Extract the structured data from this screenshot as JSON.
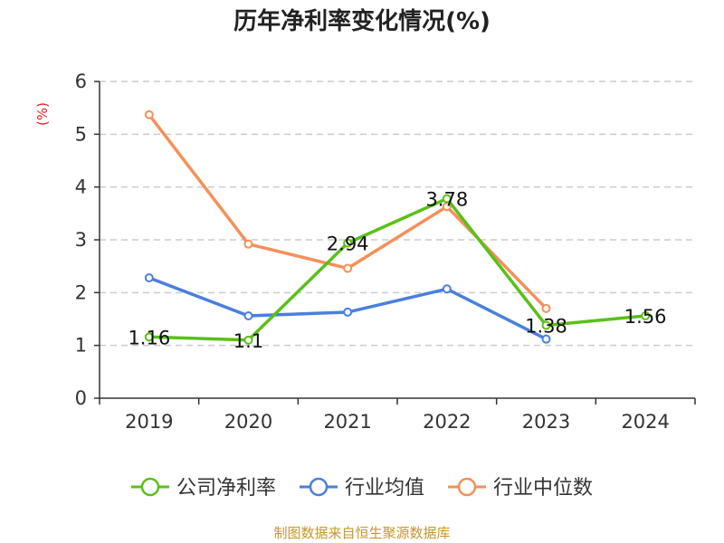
{
  "chart_data": {
    "type": "line",
    "title": "历年净利率变化情况(%)",
    "ylabel": "(%)",
    "categories": [
      "2019",
      "2020",
      "2021",
      "2022",
      "2023",
      "2024"
    ],
    "ylim": [
      0,
      6
    ],
    "yticks": [
      0,
      1,
      2,
      3,
      4,
      5,
      6
    ],
    "grid": true,
    "legend_position": "bottom",
    "series": [
      {
        "name": "公司净利率",
        "color": "#5ac018",
        "values": [
          1.16,
          1.1,
          2.94,
          3.78,
          1.38,
          1.56
        ],
        "labels": [
          "1.16",
          "1.1",
          "2.94",
          "3.78",
          "1.38",
          "1.56"
        ]
      },
      {
        "name": "行业均值",
        "color": "#4a7fde",
        "values": [
          2.28,
          1.56,
          1.63,
          2.07,
          1.12,
          null
        ]
      },
      {
        "name": "行业中位数",
        "color": "#f4905a",
        "values": [
          5.37,
          2.92,
          2.46,
          3.63,
          1.7,
          null
        ]
      }
    ],
    "source": "制图数据来自恒生聚源数据库"
  },
  "colors": {
    "title": "#222222",
    "unit": "#e02020",
    "axis": "#333333",
    "grid": "#cccccc",
    "source": "#c8962a"
  }
}
